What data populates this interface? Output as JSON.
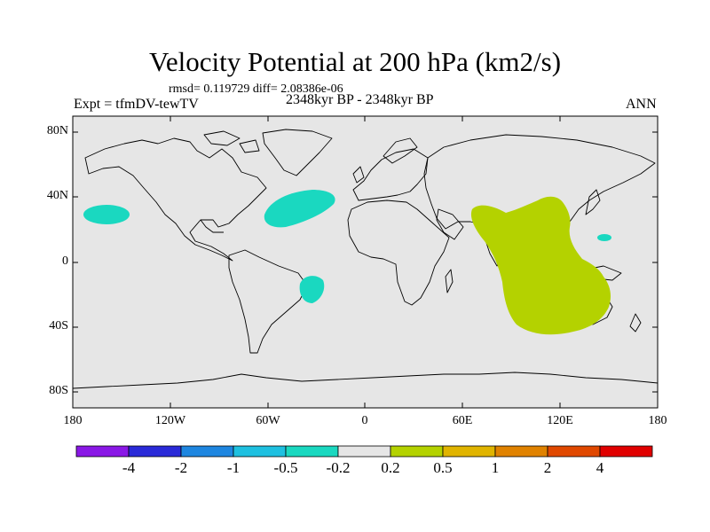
{
  "header": {
    "title": "Velocity Potential at 200 hPa (km2/s)",
    "stats": "rmsd= 0.119729 diff= 2.08386e-06",
    "experiment": "Expt = tfmDV-tewTV",
    "period": "2348kyr BP - 2348kyr BP",
    "season": "ANN"
  },
  "axes": {
    "lat_labels": [
      "80N",
      "40N",
      "0",
      "40S",
      "80S"
    ],
    "lon_labels": [
      "180",
      "120W",
      "60W",
      "0",
      "60E",
      "120E",
      "180"
    ]
  },
  "colorbar": {
    "labels": [
      "-4",
      "-2",
      "-1",
      "-0.5",
      "-0.2",
      "0.2",
      "0.5",
      "1",
      "2",
      "4"
    ],
    "colors": [
      "#8a18e6",
      "#2a2ad8",
      "#1e86e0",
      "#1ec0e0",
      "#1ad8c0",
      "#e6e6e6",
      "#b4d200",
      "#e0b400",
      "#e08200",
      "#e04800",
      "#e00000"
    ]
  },
  "map": {
    "background": "#e6e6e6",
    "anomaly_regions": [
      {
        "name": "central-north-pacific",
        "bin": "-0.5 to -0.2",
        "color": "#1ad8c0"
      },
      {
        "name": "north-atlantic",
        "bin": "-0.5 to -0.2",
        "color": "#1ad8c0"
      },
      {
        "name": "south-atlantic-brazil",
        "bin": "-0.5 to -0.2",
        "color": "#1ad8c0"
      },
      {
        "name": "western-pacific",
        "bin": "-0.5 to -0.2",
        "color": "#1ad8c0"
      },
      {
        "name": "indian-ocean-maritime-continent",
        "bin": "0.2 to 0.5",
        "color": "#b4d200"
      }
    ]
  }
}
